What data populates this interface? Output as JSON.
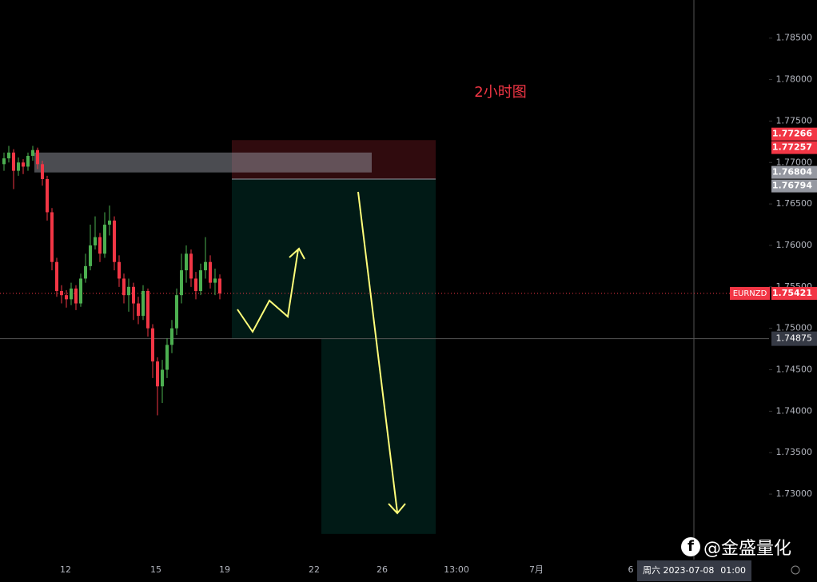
{
  "chart_data": {
    "type": "candlestick",
    "symbol": "EURNZD",
    "annotation": "2小时图",
    "open": [
      1.7698,
      1.7705,
      1.7712,
      1.769,
      1.77,
      1.7695,
      1.7708,
      1.7715,
      1.7698,
      1.768,
      1.764,
      1.758,
      1.7545,
      1.754,
      1.7535,
      1.7548,
      1.753,
      1.756,
      1.7575,
      1.76,
      1.761,
      1.759,
      1.7625,
      1.763,
      1.758,
      1.756,
      1.754,
      1.755,
      1.753,
      1.7515,
      1.7545,
      1.75,
      1.746,
      1.743,
      1.745,
      1.748,
      1.75,
      1.754,
      1.757,
      1.759,
      1.756,
      1.7545,
      1.757,
      1.758,
      1.7555,
      1.756
    ],
    "high": [
      1.7712,
      1.772,
      1.7716,
      1.7706,
      1.7704,
      1.7712,
      1.772,
      1.7718,
      1.7702,
      1.7684,
      1.7645,
      1.7585,
      1.7552,
      1.7546,
      1.7555,
      1.7552,
      1.7566,
      1.759,
      1.7625,
      1.7635,
      1.7615,
      1.764,
      1.7648,
      1.7635,
      1.7588,
      1.7566,
      1.756,
      1.7555,
      1.7538,
      1.7552,
      1.7548,
      1.7505,
      1.7465,
      1.7462,
      1.7488,
      1.751,
      1.7548,
      1.759,
      1.76,
      1.7595,
      1.7568,
      1.7578,
      1.761,
      1.7588,
      1.7572,
      1.7565
    ],
    "low": [
      1.769,
      1.77,
      1.7668,
      1.7684,
      1.7686,
      1.769,
      1.7702,
      1.7692,
      1.7672,
      1.763,
      1.757,
      1.7538,
      1.753,
      1.7525,
      1.7528,
      1.7522,
      1.7526,
      1.7555,
      1.757,
      1.7595,
      1.758,
      1.7585,
      1.7612,
      1.757,
      1.755,
      1.753,
      1.752,
      1.751,
      1.7505,
      1.751,
      1.749,
      1.744,
      1.7395,
      1.741,
      1.744,
      1.747,
      1.7492,
      1.753,
      1.7555,
      1.755,
      1.7535,
      1.754,
      1.756,
      1.7548,
      1.754,
      1.7535
    ],
    "close": [
      1.7705,
      1.7712,
      1.769,
      1.77,
      1.7695,
      1.7708,
      1.7715,
      1.7698,
      1.768,
      1.764,
      1.758,
      1.7545,
      1.754,
      1.7535,
      1.7548,
      1.753,
      1.756,
      1.7575,
      1.76,
      1.761,
      1.759,
      1.7625,
      1.763,
      1.758,
      1.756,
      1.754,
      1.755,
      1.753,
      1.7515,
      1.7545,
      1.75,
      1.746,
      1.743,
      1.745,
      1.748,
      1.75,
      1.754,
      1.757,
      1.759,
      1.756,
      1.7545,
      1.757,
      1.758,
      1.7555,
      1.756,
      1.7542
    ],
    "up_color": "#4caf50",
    "down_color": "#f23645",
    "ylim": [
      1.7221,
      1.7896
    ],
    "yticks": [
      {
        "value": 1.73,
        "label": "1.73000"
      },
      {
        "value": 1.735,
        "label": "1.73500"
      },
      {
        "value": 1.74,
        "label": "1.74000"
      },
      {
        "value": 1.745,
        "label": "1.74500"
      },
      {
        "value": 1.75,
        "label": "1.75000"
      },
      {
        "value": 1.755,
        "label": "1.75500"
      },
      {
        "value": 1.76,
        "label": "1.76000"
      },
      {
        "value": 1.765,
        "label": "1.76500"
      },
      {
        "value": 1.77,
        "label": "1.77000"
      },
      {
        "value": 1.775,
        "label": "1.77500"
      },
      {
        "value": 1.78,
        "label": "1.78000"
      },
      {
        "value": 1.785,
        "label": "1.78500"
      }
    ],
    "x_labels": [
      "12",
      "15",
      "19",
      "22",
      "26",
      "13:00",
      "7月",
      "6"
    ],
    "price_labels": [
      {
        "value": 1.77266,
        "color": "#f23645"
      },
      {
        "value": 1.77257,
        "color": "#f23645"
      },
      {
        "value": 1.76804,
        "color": "#9598a1"
      },
      {
        "value": 1.76794,
        "color": "#9598a1"
      },
      {
        "value": 1.75421,
        "color": "#f23645"
      }
    ],
    "rectangle": {
      "top": 1.7712,
      "bottom": 1.7688
    },
    "positions": [
      {
        "stop": 1.7727,
        "entry": 1.768,
        "target": 1.74875
      },
      {
        "stop": 1.7727,
        "entry": 1.768,
        "target": 1.7252
      }
    ],
    "crosshair": {
      "value": 1.74875,
      "day": "周六 2023-07-08",
      "clock": "01:00"
    }
  },
  "watermark": "@金盛量化"
}
